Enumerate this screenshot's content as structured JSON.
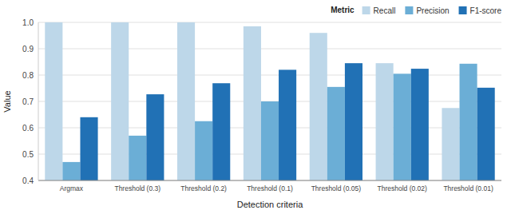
{
  "chart_data": {
    "type": "bar",
    "xlabel": "Detection criteria",
    "ylabel": "Value",
    "legend_title": "Metric",
    "categories": [
      "Argmax",
      "Threshold (0.3)",
      "Threshold (0.2)",
      "Threshold (0.1)",
      "Threshold (0.05)",
      "Threshold (0.02)",
      "Threshold (0.01)"
    ],
    "series": [
      {
        "name": "Recall",
        "color": "#bdd7e9",
        "values": [
          1.0,
          1.0,
          1.0,
          0.985,
          0.96,
          0.845,
          0.675
        ]
      },
      {
        "name": "Precision",
        "color": "#6baed6",
        "values": [
          0.47,
          0.57,
          0.625,
          0.7,
          0.755,
          0.805,
          0.843
        ]
      },
      {
        "name": "F1-score",
        "color": "#2171b5",
        "values": [
          0.64,
          0.727,
          0.769,
          0.82,
          0.845,
          0.824,
          0.752
        ]
      }
    ],
    "ylim": [
      0.4,
      1.0
    ],
    "yticks": [
      0.4,
      0.5,
      0.6,
      0.7,
      0.8,
      0.9,
      {
        "value": 1.0,
        "label": "1.0"
      }
    ],
    "grid": true,
    "legend": "upper right"
  }
}
